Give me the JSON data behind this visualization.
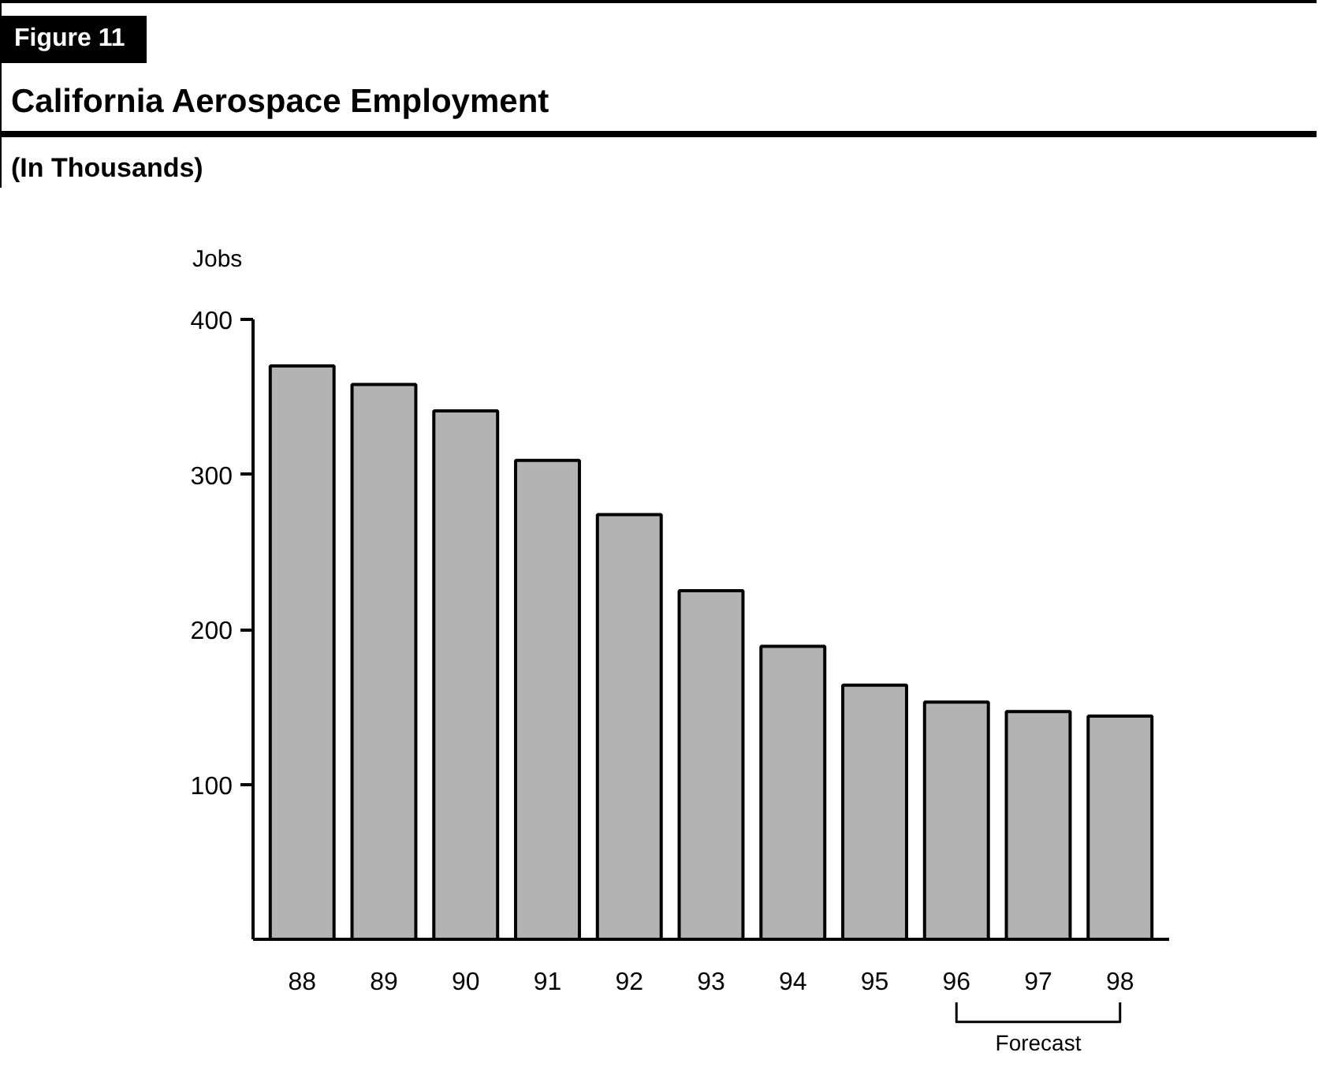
{
  "chart_data": {
    "type": "bar",
    "title": "California Aerospace Employment",
    "subtitle": "(In Thousands)",
    "ylabel": "Jobs",
    "categories": [
      "88",
      "89",
      "90",
      "91",
      "92",
      "93",
      "94",
      "95",
      "96",
      "97",
      "98"
    ],
    "values": [
      370,
      358,
      341,
      309,
      274,
      225,
      189,
      164,
      153,
      147,
      144
    ],
    "color": "#b3b3b3",
    "ylim": [
      0,
      400
    ],
    "yticks": [
      100,
      200,
      300,
      400
    ],
    "grid": false,
    "annotations": [
      "Figure 11",
      "Forecast"
    ]
  }
}
